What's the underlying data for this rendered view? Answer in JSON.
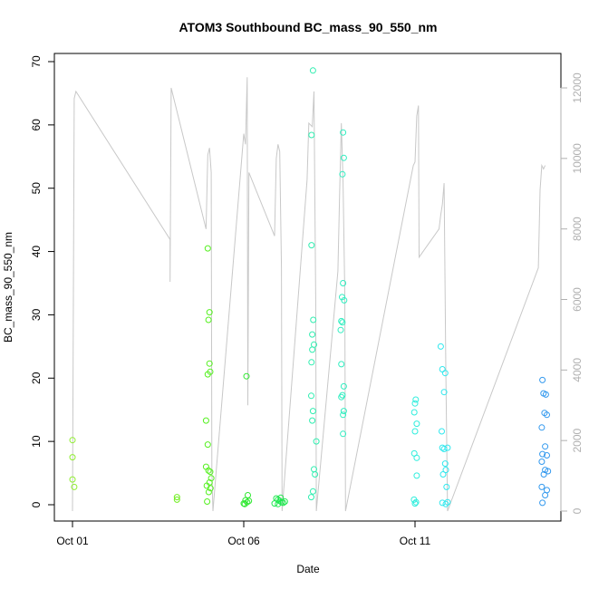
{
  "chart_data": {
    "type": "scatter",
    "title": "ATOM3 Southbound BC_mass_90_550_nm",
    "xlabel": "Date",
    "ylabel": "BC_mass_90_550_nm",
    "x_ticks": [
      {
        "label": "Oct 01",
        "day": 1
      },
      {
        "label": "Oct 06",
        "day": 6
      },
      {
        "label": "Oct 11",
        "day": 11
      }
    ],
    "xlim_days": [
      1,
      15
    ],
    "ylim": [
      0,
      70
    ],
    "y_ticks": [
      0,
      10,
      20,
      30,
      40,
      50,
      60,
      70
    ],
    "y2lim": [
      0,
      12000
    ],
    "y2_ticks": [
      0,
      2000,
      4000,
      6000,
      8000,
      10000,
      12000
    ],
    "y2_color": "#b0b0b0",
    "grid": false,
    "series": [
      {
        "marker": "open-circle",
        "points": [
          {
            "d": 1.0,
            "y": 10.2,
            "c": "#90ee30"
          },
          {
            "d": 1.0,
            "y": 7.5,
            "c": "#90ee30"
          },
          {
            "d": 1.0,
            "y": 4.0,
            "c": "#90ee30"
          },
          {
            "d": 1.05,
            "y": 2.8,
            "c": "#90ee30"
          },
          {
            "d": 4.05,
            "y": 1.2,
            "c": "#70ee20"
          },
          {
            "d": 4.05,
            "y": 0.8,
            "c": "#70ee20"
          },
          {
            "d": 4.9,
            "y": 13.3,
            "c": "#55f020"
          },
          {
            "d": 4.95,
            "y": 40.5,
            "c": "#55f020"
          },
          {
            "d": 5.0,
            "y": 30.4,
            "c": "#55f020"
          },
          {
            "d": 4.97,
            "y": 29.2,
            "c": "#55f020"
          },
          {
            "d": 5.0,
            "y": 22.3,
            "c": "#55f020"
          },
          {
            "d": 5.02,
            "y": 21.0,
            "c": "#55f020"
          },
          {
            "d": 4.95,
            "y": 20.6,
            "c": "#55f020"
          },
          {
            "d": 4.95,
            "y": 9.5,
            "c": "#55f020"
          },
          {
            "d": 4.9,
            "y": 6.0,
            "c": "#55f020"
          },
          {
            "d": 4.97,
            "y": 5.4,
            "c": "#55f020"
          },
          {
            "d": 5.02,
            "y": 5.2,
            "c": "#55f020"
          },
          {
            "d": 5.05,
            "y": 4.2,
            "c": "#55f020"
          },
          {
            "d": 5.0,
            "y": 3.5,
            "c": "#55f020"
          },
          {
            "d": 4.92,
            "y": 3.0,
            "c": "#55f020"
          },
          {
            "d": 5.03,
            "y": 2.6,
            "c": "#55f020"
          },
          {
            "d": 4.98,
            "y": 2.0,
            "c": "#55f020"
          },
          {
            "d": 4.93,
            "y": 0.5,
            "c": "#55f020"
          },
          {
            "d": 6.08,
            "y": 20.3,
            "c": "#2ee830"
          },
          {
            "d": 6.12,
            "y": 1.5,
            "c": "#2ee830"
          },
          {
            "d": 6.05,
            "y": 0.7,
            "c": "#2ee830"
          },
          {
            "d": 6.1,
            "y": 0.4,
            "c": "#2ee830"
          },
          {
            "d": 6.0,
            "y": 0.2,
            "c": "#2ee830"
          },
          {
            "d": 6.15,
            "y": 0.6,
            "c": "#2ee830"
          },
          {
            "d": 6.03,
            "y": 0.1,
            "c": "#2ee830"
          },
          {
            "d": 6.95,
            "y": 1.0,
            "c": "#20e850"
          },
          {
            "d": 7.0,
            "y": 0.8,
            "c": "#20e850"
          },
          {
            "d": 7.05,
            "y": 0.6,
            "c": "#20e850"
          },
          {
            "d": 7.1,
            "y": 0.4,
            "c": "#20e850"
          },
          {
            "d": 7.15,
            "y": 0.3,
            "c": "#20e850"
          },
          {
            "d": 6.9,
            "y": 0.2,
            "c": "#20e850"
          },
          {
            "d": 7.2,
            "y": 0.5,
            "c": "#20e850"
          },
          {
            "d": 7.0,
            "y": 0.1,
            "c": "#20e850"
          },
          {
            "d": 7.08,
            "y": 1.1,
            "c": "#20e850"
          },
          {
            "d": 8.02,
            "y": 68.6,
            "c": "#30eeb0"
          },
          {
            "d": 7.98,
            "y": 58.4,
            "c": "#30eeb0"
          },
          {
            "d": 7.98,
            "y": 41.0,
            "c": "#30eeb0"
          },
          {
            "d": 8.03,
            "y": 29.2,
            "c": "#30eeb0"
          },
          {
            "d": 8.0,
            "y": 26.9,
            "c": "#30eeb0"
          },
          {
            "d": 8.05,
            "y": 25.3,
            "c": "#30eeb0"
          },
          {
            "d": 8.0,
            "y": 24.5,
            "c": "#30eeb0"
          },
          {
            "d": 7.98,
            "y": 22.5,
            "c": "#30eeb0"
          },
          {
            "d": 7.97,
            "y": 17.2,
            "c": "#30eeb0"
          },
          {
            "d": 8.02,
            "y": 14.8,
            "c": "#30eeb0"
          },
          {
            "d": 8.0,
            "y": 13.3,
            "c": "#30eeb0"
          },
          {
            "d": 8.12,
            "y": 10.0,
            "c": "#30eeb0"
          },
          {
            "d": 8.05,
            "y": 5.6,
            "c": "#30eeb0"
          },
          {
            "d": 8.08,
            "y": 4.8,
            "c": "#30eeb0"
          },
          {
            "d": 8.02,
            "y": 2.1,
            "c": "#30eeb0"
          },
          {
            "d": 7.97,
            "y": 1.2,
            "c": "#30eeb0"
          },
          {
            "d": 8.9,
            "y": 58.8,
            "c": "#30eec0"
          },
          {
            "d": 8.92,
            "y": 54.8,
            "c": "#30eec0"
          },
          {
            "d": 8.88,
            "y": 52.2,
            "c": "#30eec0"
          },
          {
            "d": 8.9,
            "y": 35.0,
            "c": "#30eec0"
          },
          {
            "d": 8.87,
            "y": 32.8,
            "c": "#30eec0"
          },
          {
            "d": 8.93,
            "y": 32.3,
            "c": "#30eec0"
          },
          {
            "d": 8.85,
            "y": 29.0,
            "c": "#30eec0"
          },
          {
            "d": 8.88,
            "y": 28.8,
            "c": "#30eec0"
          },
          {
            "d": 8.83,
            "y": 27.6,
            "c": "#30eec0"
          },
          {
            "d": 8.85,
            "y": 22.2,
            "c": "#30eec0"
          },
          {
            "d": 8.92,
            "y": 18.7,
            "c": "#30eec0"
          },
          {
            "d": 8.88,
            "y": 17.3,
            "c": "#30eec0"
          },
          {
            "d": 8.85,
            "y": 17.0,
            "c": "#30eec0"
          },
          {
            "d": 8.92,
            "y": 14.8,
            "c": "#30eec0"
          },
          {
            "d": 8.9,
            "y": 14.2,
            "c": "#30eec0"
          },
          {
            "d": 8.9,
            "y": 11.2,
            "c": "#30eec0"
          },
          {
            "d": 11.02,
            "y": 16.6,
            "c": "#30eedd"
          },
          {
            "d": 11.0,
            "y": 16.0,
            "c": "#30eedd"
          },
          {
            "d": 10.98,
            "y": 14.6,
            "c": "#30eedd"
          },
          {
            "d": 11.05,
            "y": 12.8,
            "c": "#30eedd"
          },
          {
            "d": 11.0,
            "y": 11.6,
            "c": "#30eedd"
          },
          {
            "d": 10.98,
            "y": 8.1,
            "c": "#30eedd"
          },
          {
            "d": 11.05,
            "y": 7.4,
            "c": "#30eedd"
          },
          {
            "d": 11.05,
            "y": 4.6,
            "c": "#30eedd"
          },
          {
            "d": 10.97,
            "y": 0.8,
            "c": "#30eedd"
          },
          {
            "d": 11.03,
            "y": 0.4,
            "c": "#30eedd"
          },
          {
            "d": 11.0,
            "y": 0.2,
            "c": "#30eedd"
          },
          {
            "d": 11.75,
            "y": 25.0,
            "c": "#30e8ee"
          },
          {
            "d": 11.8,
            "y": 21.4,
            "c": "#30e8ee"
          },
          {
            "d": 11.88,
            "y": 20.8,
            "c": "#30e8ee"
          },
          {
            "d": 11.85,
            "y": 17.8,
            "c": "#30e8ee"
          },
          {
            "d": 11.78,
            "y": 11.6,
            "c": "#30e8ee"
          },
          {
            "d": 11.8,
            "y": 9.0,
            "c": "#30e8ee"
          },
          {
            "d": 11.85,
            "y": 8.8,
            "c": "#30e8ee"
          },
          {
            "d": 11.95,
            "y": 9.0,
            "c": "#30e8ee"
          },
          {
            "d": 11.88,
            "y": 6.5,
            "c": "#30e8ee"
          },
          {
            "d": 11.9,
            "y": 5.5,
            "c": "#30e8ee"
          },
          {
            "d": 11.82,
            "y": 4.8,
            "c": "#30e8ee"
          },
          {
            "d": 11.92,
            "y": 2.8,
            "c": "#30e8ee"
          },
          {
            "d": 11.8,
            "y": 0.3,
            "c": "#30e8ee"
          },
          {
            "d": 11.9,
            "y": 0.1,
            "c": "#30e8ee"
          },
          {
            "d": 11.95,
            "y": 0.4,
            "c": "#30e8ee"
          },
          {
            "d": 14.72,
            "y": 19.7,
            "c": "#3399ee"
          },
          {
            "d": 14.75,
            "y": 17.6,
            "c": "#3399ee"
          },
          {
            "d": 14.82,
            "y": 17.4,
            "c": "#3399ee"
          },
          {
            "d": 14.78,
            "y": 14.5,
            "c": "#3399ee"
          },
          {
            "d": 14.85,
            "y": 14.2,
            "c": "#3399ee"
          },
          {
            "d": 14.7,
            "y": 12.2,
            "c": "#3399ee"
          },
          {
            "d": 14.8,
            "y": 9.2,
            "c": "#3399ee"
          },
          {
            "d": 14.72,
            "y": 8.0,
            "c": "#3399ee"
          },
          {
            "d": 14.85,
            "y": 7.8,
            "c": "#3399ee"
          },
          {
            "d": 14.7,
            "y": 6.8,
            "c": "#3399ee"
          },
          {
            "d": 14.8,
            "y": 5.5,
            "c": "#3399ee"
          },
          {
            "d": 14.88,
            "y": 5.3,
            "c": "#3399ee"
          },
          {
            "d": 14.76,
            "y": 4.8,
            "c": "#3399ee"
          },
          {
            "d": 14.7,
            "y": 2.8,
            "c": "#3399ee"
          },
          {
            "d": 14.85,
            "y": 2.3,
            "c": "#3399ee"
          },
          {
            "d": 14.8,
            "y": 1.5,
            "c": "#3399ee"
          },
          {
            "d": 14.72,
            "y": 0.3,
            "c": "#3399ee"
          }
        ]
      },
      {
        "axis": "right",
        "color": "#c8c8c8",
        "line": [
          [
            1.0,
            0
          ],
          [
            1.05,
            11700
          ],
          [
            1.1,
            11900
          ],
          [
            3.85,
            7700
          ],
          [
            3.85,
            6500
          ],
          [
            3.88,
            12000
          ],
          [
            4.9,
            8000
          ],
          [
            4.95,
            10100
          ],
          [
            5.0,
            10300
          ],
          [
            5.05,
            9600
          ],
          [
            5.07,
            1200
          ],
          [
            5.1,
            0
          ],
          [
            6.0,
            10700
          ],
          [
            6.05,
            10400
          ],
          [
            6.1,
            12300
          ],
          [
            6.12,
            3000
          ],
          [
            6.15,
            9600
          ],
          [
            6.9,
            7800
          ],
          [
            6.95,
            10000
          ],
          [
            7.0,
            10400
          ],
          [
            7.05,
            10200
          ],
          [
            7.1,
            6900
          ],
          [
            7.12,
            0
          ],
          [
            7.85,
            9400
          ],
          [
            7.9,
            11000
          ],
          [
            8.0,
            10900
          ],
          [
            8.05,
            11900
          ],
          [
            8.1,
            6000
          ],
          [
            8.12,
            0
          ],
          [
            8.75,
            6800
          ],
          [
            8.8,
            9000
          ],
          [
            8.85,
            11000
          ],
          [
            8.9,
            9300
          ],
          [
            8.95,
            6200
          ],
          [
            8.97,
            0
          ],
          [
            10.95,
            9800
          ],
          [
            11.0,
            9900
          ],
          [
            11.05,
            11200
          ],
          [
            11.1,
            11500
          ],
          [
            11.12,
            7200
          ],
          [
            11.7,
            8000
          ],
          [
            11.75,
            8400
          ],
          [
            11.8,
            8700
          ],
          [
            11.85,
            9300
          ],
          [
            11.9,
            4000
          ],
          [
            11.95,
            0
          ],
          [
            14.6,
            6900
          ],
          [
            14.65,
            9100
          ],
          [
            14.7,
            9800
          ],
          [
            14.75,
            9700
          ],
          [
            14.8,
            9800
          ]
        ]
      }
    ]
  }
}
